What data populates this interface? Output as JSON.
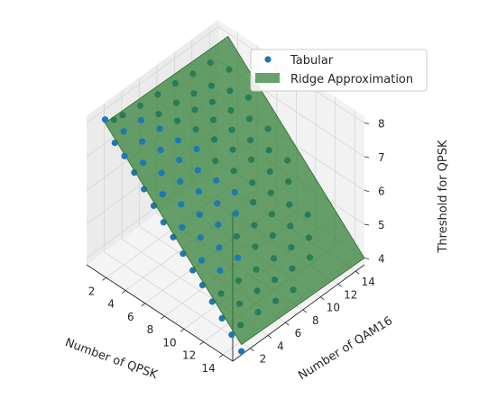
{
  "chart_data": {
    "type": "scatter3d+surface",
    "xlabel": "Number of QPSK",
    "ylabel": "Number of QAM16",
    "zlabel": "Threshold for QPSK",
    "x_ticks": [
      "2",
      "4",
      "6",
      "8",
      "10",
      "12",
      "14"
    ],
    "y_ticks": [
      "2",
      "4",
      "6",
      "8",
      "10",
      "12",
      "14"
    ],
    "z_ticks": [
      "4",
      "5",
      "6",
      "7",
      "8"
    ],
    "xlim": [
      0,
      15
    ],
    "ylim": [
      0,
      15
    ],
    "zlim": [
      3.8,
      8.2
    ],
    "grid": true,
    "legend_position": "top-right",
    "legend": [
      "Tabular",
      "Ridge Approximation"
    ],
    "colors": {
      "scatter": "#1f77b4",
      "surface": "#2e7d32",
      "surface_edge": "#2e6b2a",
      "pane_left": "#ebebeb",
      "pane_back": "#f2f2f2",
      "floor": "#f4f4f4",
      "grid": "#d6d6d6"
    },
    "surface": {
      "corners": [
        {
          "x": 1,
          "y": 1,
          "z": 8.0
        },
        {
          "x": 15,
          "y": 1,
          "z": 4.1
        },
        {
          "x": 15,
          "y": 15,
          "z": 4.0
        },
        {
          "x": 1,
          "y": 15,
          "z": 7.9
        }
      ]
    },
    "series": [
      {
        "name": "Tabular",
        "points": [
          [
            1,
            1,
            8.1
          ],
          [
            1,
            2,
            7.9
          ],
          [
            1,
            3,
            7.85
          ],
          [
            1,
            5,
            7.75
          ],
          [
            1,
            7,
            7.7
          ],
          [
            1,
            9,
            7.65
          ],
          [
            1,
            11,
            7.55
          ],
          [
            1,
            13,
            7.5
          ],
          [
            2,
            1,
            7.6
          ],
          [
            2,
            2,
            7.75
          ],
          [
            2,
            4,
            7.7
          ],
          [
            2,
            6,
            7.5
          ],
          [
            2,
            8,
            7.45
          ],
          [
            2,
            10,
            7.35
          ],
          [
            2,
            12,
            7.2
          ],
          [
            2,
            14,
            7.3
          ],
          [
            3,
            1,
            7.4
          ],
          [
            3,
            3,
            7.45
          ],
          [
            3,
            5,
            7.45
          ],
          [
            3,
            7,
            7.3
          ],
          [
            3,
            9,
            7.25
          ],
          [
            3,
            11,
            7.1
          ],
          [
            3,
            13,
            7.05
          ],
          [
            4,
            1,
            7.1
          ],
          [
            4,
            2,
            7.2
          ],
          [
            4,
            4,
            7.2
          ],
          [
            4,
            6,
            7.1
          ],
          [
            4,
            8,
            7.05
          ],
          [
            4,
            10,
            6.95
          ],
          [
            4,
            12,
            6.85
          ],
          [
            4,
            14,
            6.85
          ],
          [
            5,
            1,
            6.8
          ],
          [
            5,
            3,
            6.9
          ],
          [
            5,
            5,
            6.9
          ],
          [
            5,
            7,
            6.85
          ],
          [
            5,
            9,
            6.75
          ],
          [
            5,
            11,
            6.65
          ],
          [
            5,
            13,
            6.6
          ],
          [
            6,
            1,
            6.5
          ],
          [
            6,
            2,
            6.65
          ],
          [
            6,
            4,
            6.65
          ],
          [
            6,
            6,
            6.6
          ],
          [
            6,
            8,
            6.5
          ],
          [
            6,
            10,
            6.45
          ],
          [
            6,
            12,
            6.35
          ],
          [
            6,
            14,
            6.3
          ],
          [
            7,
            1,
            6.2
          ],
          [
            7,
            3,
            6.35
          ],
          [
            7,
            5,
            6.35
          ],
          [
            7,
            7,
            6.3
          ],
          [
            7,
            9,
            6.2
          ],
          [
            7,
            11,
            6.15
          ],
          [
            7,
            13,
            6.05
          ],
          [
            8,
            1,
            5.95
          ],
          [
            8,
            2,
            6.05
          ],
          [
            8,
            4,
            6.05
          ],
          [
            8,
            6,
            6.0
          ],
          [
            8,
            8,
            5.95
          ],
          [
            8,
            10,
            5.85
          ],
          [
            8,
            12,
            5.8
          ],
          [
            8,
            14,
            5.75
          ],
          [
            9,
            1,
            5.65
          ],
          [
            9,
            3,
            5.75
          ],
          [
            9,
            5,
            5.75
          ],
          [
            9,
            7,
            5.7
          ],
          [
            9,
            9,
            5.65
          ],
          [
            9,
            11,
            5.55
          ],
          [
            9,
            13,
            5.5
          ],
          [
            10,
            1,
            5.35
          ],
          [
            10,
            2,
            5.45
          ],
          [
            10,
            4,
            5.45
          ],
          [
            10,
            6,
            5.4
          ],
          [
            10,
            8,
            5.35
          ],
          [
            10,
            10,
            5.3
          ],
          [
            10,
            12,
            5.2
          ],
          [
            11,
            1,
            5.1
          ],
          [
            11,
            3,
            5.15
          ],
          [
            11,
            5,
            5.15
          ],
          [
            11,
            7,
            5.1
          ],
          [
            11,
            9,
            5.05
          ],
          [
            11,
            11,
            4.95
          ],
          [
            11,
            13,
            4.9
          ],
          [
            12,
            1,
            4.8
          ],
          [
            12,
            2,
            4.85
          ],
          [
            12,
            4,
            4.85
          ],
          [
            12,
            6,
            4.8
          ],
          [
            12,
            8,
            4.75
          ],
          [
            12,
            10,
            4.7
          ],
          [
            12,
            12,
            4.6
          ],
          [
            13,
            1,
            4.5
          ],
          [
            13,
            3,
            4.55
          ],
          [
            13,
            5,
            4.55
          ],
          [
            13,
            7,
            4.5
          ],
          [
            13,
            9,
            4.45
          ],
          [
            13,
            11,
            4.4
          ],
          [
            14,
            1,
            4.2
          ],
          [
            14,
            2,
            4.3
          ],
          [
            14,
            4,
            4.3
          ],
          [
            14,
            6,
            4.25
          ],
          [
            14,
            8,
            4.2
          ],
          [
            15,
            1,
            3.9
          ]
        ]
      }
    ]
  }
}
